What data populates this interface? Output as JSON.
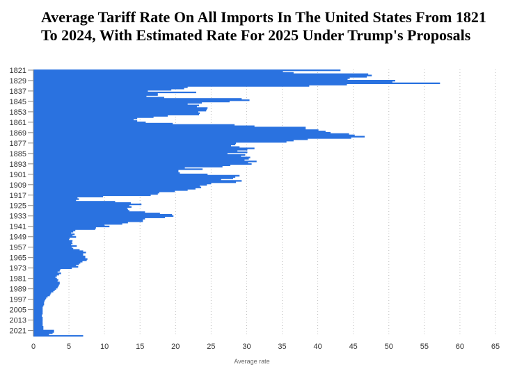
{
  "chart_data": {
    "type": "bar",
    "orientation": "horizontal",
    "title": "Average Tariff Rate On All Imports In The United States From 1821 To 2024, With Estimated Rate For 2025 Under Trump's Proposals",
    "xlabel": "Average rate",
    "ylabel": "",
    "xlim": [
      0,
      65
    ],
    "xticks": [
      0,
      5,
      10,
      15,
      20,
      25,
      30,
      35,
      40,
      45,
      50,
      55,
      60,
      65
    ],
    "yticks": [
      "1821",
      "1829",
      "1837",
      "1845",
      "1853",
      "1861",
      "1869",
      "1877",
      "1885",
      "1893",
      "1901",
      "1909",
      "1917",
      "1925",
      "1933",
      "1941",
      "1949",
      "1957",
      "1965",
      "1973",
      "1981",
      "1989",
      "1997",
      "2005",
      "2013",
      "2021"
    ],
    "grid": "vertical-dotted",
    "color": "#2a72e0",
    "categories": [
      1821,
      1822,
      1823,
      1824,
      1825,
      1826,
      1827,
      1828,
      1829,
      1830,
      1831,
      1832,
      1833,
      1834,
      1835,
      1836,
      1837,
      1838,
      1839,
      1840,
      1841,
      1842,
      1843,
      1844,
      1845,
      1846,
      1847,
      1848,
      1849,
      1850,
      1851,
      1852,
      1853,
      1854,
      1855,
      1856,
      1857,
      1858,
      1859,
      1860,
      1861,
      1862,
      1863,
      1864,
      1865,
      1866,
      1867,
      1868,
      1869,
      1870,
      1871,
      1872,
      1873,
      1874,
      1875,
      1876,
      1877,
      1878,
      1879,
      1880,
      1881,
      1882,
      1883,
      1884,
      1885,
      1886,
      1887,
      1888,
      1889,
      1890,
      1891,
      1892,
      1893,
      1894,
      1895,
      1896,
      1897,
      1898,
      1899,
      1900,
      1901,
      1902,
      1903,
      1904,
      1905,
      1906,
      1907,
      1908,
      1909,
      1910,
      1911,
      1912,
      1913,
      1914,
      1915,
      1916,
      1917,
      1918,
      1919,
      1920,
      1921,
      1922,
      1923,
      1924,
      1925,
      1926,
      1927,
      1928,
      1929,
      1930,
      1931,
      1932,
      1933,
      1934,
      1935,
      1936,
      1937,
      1938,
      1939,
      1940,
      1941,
      1942,
      1943,
      1944,
      1945,
      1946,
      1947,
      1948,
      1949,
      1950,
      1951,
      1952,
      1953,
      1954,
      1955,
      1956,
      1957,
      1958,
      1959,
      1960,
      1961,
      1962,
      1963,
      1964,
      1965,
      1966,
      1967,
      1968,
      1969,
      1970,
      1971,
      1972,
      1973,
      1974,
      1975,
      1976,
      1977,
      1978,
      1979,
      1980,
      1981,
      1982,
      1983,
      1984,
      1985,
      1986,
      1987,
      1988,
      1989,
      1990,
      1991,
      1992,
      1993,
      1994,
      1995,
      1996,
      1997,
      1998,
      1999,
      2000,
      2001,
      2002,
      2003,
      2004,
      2005,
      2006,
      2007,
      2008,
      2009,
      2010,
      2011,
      2012,
      2013,
      2014,
      2015,
      2016,
      2017,
      2018,
      2019,
      2020,
      2021,
      2022,
      2023,
      2024,
      2025
    ],
    "values": [
      43.2,
      35.1,
      36.6,
      47.1,
      47.6,
      46.9,
      44.5,
      44.2,
      50.9,
      50.5,
      57.2,
      44.1,
      38.8,
      21.7,
      21.2,
      19.4,
      16.1,
      22.9,
      17.5,
      17.5,
      15.9,
      18.4,
      29.3,
      30.4,
      27.6,
      23.7,
      21.7,
      23.3,
      23.0,
      24.5,
      24.4,
      24.3,
      23.2,
      23.4,
      23.3,
      18.9,
      16.9,
      14.6,
      14.1,
      14.6,
      15.8,
      19.6,
      28.3,
      31.1,
      38.3,
      38.3,
      40.1,
      41.1,
      41.8,
      44.4,
      45.2,
      46.6,
      44.7,
      38.6,
      36.6,
      35.6,
      28.5,
      28.4,
      27.8,
      29.0,
      31.1,
      30.1,
      28.7,
      30.1,
      27.3,
      29.8,
      29.2,
      30.5,
      30.3,
      29.7,
      31.4,
      30.2,
      30.7,
      27.7,
      26.6,
      21.3,
      23.8,
      20.4,
      20.4,
      20.6,
      24.5,
      29.0,
      28.4,
      28.1,
      26.4,
      29.3,
      28.5,
      25.0,
      24.4,
      23.4,
      23.6,
      22.8,
      21.7,
      19.9,
      17.7,
      17.5,
      16.5,
      9.8,
      6.2,
      6.4,
      6.0,
      11.5,
      13.7,
      15.2,
      13.5,
      13.8,
      13.2,
      13.3,
      13.5,
      15.7,
      17.8,
      19.5,
      19.7,
      18.5,
      15.7,
      15.4,
      15.4,
      13.3,
      12.5,
      10.0,
      10.7,
      8.8,
      8.7,
      5.9,
      5.6,
      5.3,
      5.8,
      5.5,
      6.0,
      5.1,
      5.0,
      5.5,
      5.4,
      5.5,
      5.3,
      6.1,
      5.4,
      5.6,
      6.5,
      7.0,
      7.4,
      7.0,
      7.0,
      7.3,
      7.3,
      7.6,
      7.5,
      6.9,
      6.6,
      6.4,
      6.0,
      6.3,
      5.4,
      3.8,
      3.7,
      3.4,
      3.9,
      3.6,
      3.3,
      3.1,
      3.3,
      3.5,
      3.4,
      3.7,
      3.7,
      3.6,
      3.5,
      3.4,
      3.2,
      3.0,
      2.8,
      2.5,
      2.4,
      2.3,
      2.0,
      1.8,
      1.7,
      1.6,
      1.5,
      1.5,
      1.5,
      1.4,
      1.3,
      1.3,
      1.3,
      1.3,
      1.3,
      1.3,
      1.2,
      1.2,
      1.3,
      1.3,
      1.3,
      1.3,
      1.3,
      1.3,
      1.3,
      1.4,
      1.4,
      1.4,
      2.9,
      2.9,
      2.7,
      2.2,
      7.0
    ]
  }
}
